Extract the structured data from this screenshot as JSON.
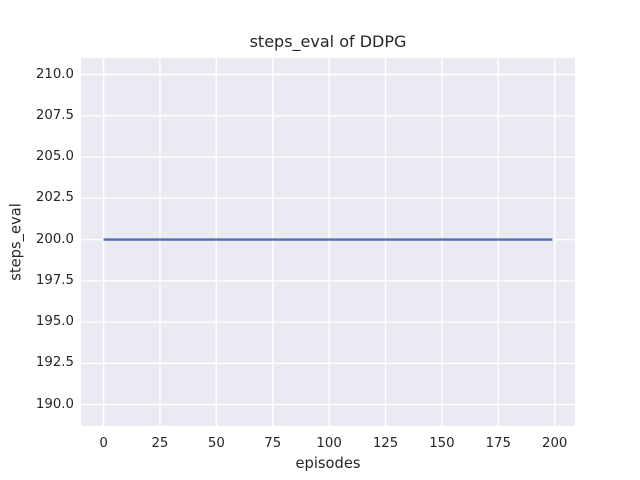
{
  "chart_data": {
    "type": "line",
    "title": "steps_eval of DDPG",
    "xlabel": "episodes",
    "ylabel": "steps_eval",
    "xlim": [
      -10,
      209
    ],
    "ylim": [
      188.7,
      211.0
    ],
    "xticks": [
      0,
      25,
      50,
      75,
      100,
      125,
      150,
      175,
      200
    ],
    "xtick_labels": [
      "0",
      "25",
      "50",
      "75",
      "100",
      "125",
      "150",
      "175",
      "200"
    ],
    "yticks": [
      190.0,
      192.5,
      195.0,
      197.5,
      200.0,
      202.5,
      205.0,
      207.5,
      210.0
    ],
    "ytick_labels": [
      "190.0",
      "192.5",
      "195.0",
      "197.5",
      "200.0",
      "202.5",
      "205.0",
      "207.5",
      "210.0"
    ],
    "grid": true,
    "legend": null,
    "series": [
      {
        "name": "steps_eval",
        "color": "#4C72B0",
        "points": [
          [
            0,
            200.0
          ],
          [
            199,
            200.0
          ]
        ]
      }
    ],
    "colors": {
      "plot_background": "#EAEAF2",
      "grid_line": "#FFFFFF",
      "text": "#262626",
      "figure_background": "#FFFFFF"
    }
  }
}
